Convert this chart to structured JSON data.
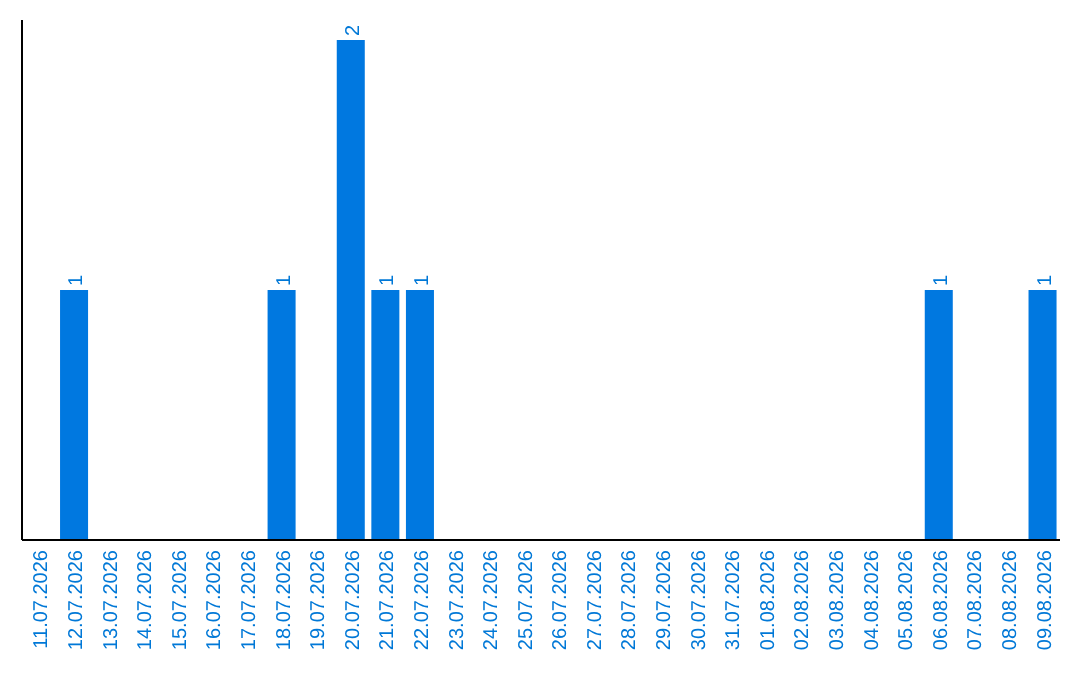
{
  "chart_data": {
    "type": "bar",
    "categories": [
      "11.07.2026",
      "12.07.2026",
      "13.07.2026",
      "14.07.2026",
      "15.07.2026",
      "16.07.2026",
      "17.07.2026",
      "18.07.2026",
      "19.07.2026",
      "20.07.2026",
      "21.07.2026",
      "22.07.2026",
      "23.07.2026",
      "24.07.2026",
      "25.07.2026",
      "26.07.2026",
      "27.07.2026",
      "28.07.2026",
      "29.07.2026",
      "30.07.2026",
      "31.07.2026",
      "01.08.2026",
      "02.08.2026",
      "03.08.2026",
      "04.08.2026",
      "05.08.2026",
      "06.08.2026",
      "07.08.2026",
      "08.08.2026",
      "09.08.2026"
    ],
    "values": [
      0,
      1,
      0,
      0,
      0,
      0,
      0,
      1,
      0,
      2,
      1,
      1,
      0,
      0,
      0,
      0,
      0,
      0,
      0,
      0,
      0,
      0,
      0,
      0,
      0,
      0,
      1,
      0,
      0,
      1
    ],
    "value_labels": [
      null,
      "1",
      null,
      null,
      null,
      null,
      null,
      "1",
      null,
      "2",
      "1",
      "1",
      null,
      null,
      null,
      null,
      null,
      null,
      null,
      null,
      null,
      null,
      null,
      null,
      null,
      null,
      "1",
      null,
      null,
      "1"
    ],
    "color": "#0078e0"
  }
}
